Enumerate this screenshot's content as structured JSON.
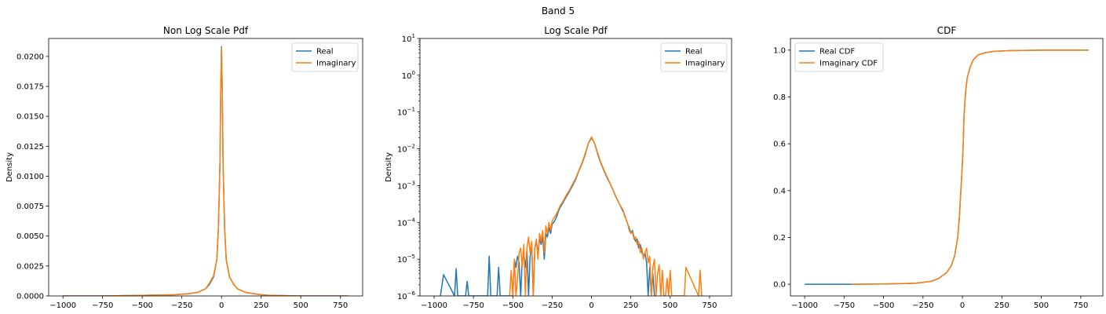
{
  "figure": {
    "suptitle": "Band 5"
  },
  "colors": {
    "real": "#1f77b4",
    "imaginary": "#ff7f0e",
    "axes": "#000000",
    "background": "#ffffff"
  },
  "chart_data": [
    {
      "type": "line",
      "title": "Non Log Scale Pdf",
      "xlabel": "",
      "ylabel": "Density",
      "xlim": [
        -1090,
        890
      ],
      "ylim": [
        0,
        0.0215
      ],
      "yscale": "linear",
      "xticks": [
        -1000,
        -750,
        -500,
        -250,
        0,
        250,
        500,
        750
      ],
      "xtick_labels": [
        "−1000",
        "−750",
        "−500",
        "−250",
        "0",
        "250",
        "500",
        "750"
      ],
      "yticks": [
        0,
        0.0025,
        0.005,
        0.0075,
        0.01,
        0.0125,
        0.015,
        0.0175,
        0.02
      ],
      "ytick_labels": [
        "0.0000",
        "0.0025",
        "0.0050",
        "0.0075",
        "0.0100",
        "0.0125",
        "0.0150",
        "0.0175",
        "0.0200"
      ],
      "legend": {
        "position": "top-right",
        "entries": [
          "Real",
          "Imaginary"
        ]
      },
      "grid": false,
      "series": [
        {
          "name": "Real",
          "color": "#1f77b4",
          "x": [
            -1000,
            -750,
            -500,
            -300,
            -250,
            -200,
            -150,
            -100,
            -75,
            -50,
            -30,
            -20,
            -10,
            -5,
            0,
            5,
            10,
            20,
            30,
            50,
            75,
            100,
            150,
            200,
            250,
            300,
            500,
            800
          ],
          "y": [
            0,
            0,
            5e-05,
            0.0001,
            0.00015,
            0.0002,
            0.0003,
            0.0006,
            0.001,
            0.0016,
            0.003,
            0.0055,
            0.011,
            0.017,
            0.0208,
            0.017,
            0.011,
            0.0055,
            0.003,
            0.0016,
            0.001,
            0.0006,
            0.0003,
            0.0002,
            0.0001,
            5e-05,
            0,
            0
          ]
        },
        {
          "name": "Imaginary",
          "color": "#ff7f0e",
          "x": [
            -1000,
            -750,
            -500,
            -300,
            -250,
            -200,
            -150,
            -100,
            -75,
            -50,
            -30,
            -20,
            -10,
            -5,
            0,
            5,
            10,
            20,
            30,
            50,
            75,
            100,
            150,
            200,
            250,
            300,
            500,
            800
          ],
          "y": [
            0,
            0,
            5e-05,
            0.0001,
            0.00015,
            0.0002,
            0.0003,
            0.0006,
            0.0011,
            0.0017,
            0.003,
            0.0055,
            0.011,
            0.017,
            0.0207,
            0.017,
            0.011,
            0.0055,
            0.003,
            0.0016,
            0.001,
            0.0006,
            0.0003,
            0.0002,
            0.0001,
            5e-05,
            0,
            0
          ]
        }
      ]
    },
    {
      "type": "line",
      "title": "Log Scale Pdf",
      "xlabel": "",
      "ylabel": "Density",
      "xlim": [
        -1090,
        890
      ],
      "ylim": [
        1e-06,
        10
      ],
      "yscale": "log",
      "xticks": [
        -1000,
        -750,
        -500,
        -250,
        0,
        250,
        500,
        750
      ],
      "xtick_labels": [
        "−1000",
        "−750",
        "−500",
        "−250",
        "0",
        "250",
        "500",
        "750"
      ],
      "yticks": [
        1e-06,
        1e-05,
        0.0001,
        0.001,
        0.01,
        0.1,
        1,
        10
      ],
      "ytick_labels": [
        [
          "10",
          "−6"
        ],
        [
          "10",
          "−5"
        ],
        [
          "10",
          "−4"
        ],
        [
          "10",
          "−3"
        ],
        [
          "10",
          "−2"
        ],
        [
          "10",
          "−1"
        ],
        [
          "10",
          "0"
        ],
        [
          "10",
          "1"
        ]
      ],
      "legend": {
        "position": "top-right",
        "entries": [
          "Real",
          "Imaginary"
        ]
      },
      "grid": false,
      "series": [
        {
          "name": "Real",
          "color": "#1f77b4",
          "x": [
            -960,
            -940,
            -870,
            -860,
            -850,
            -800,
            -790,
            -780,
            -660,
            -650,
            -640,
            -600,
            -590,
            -580,
            -500,
            -490,
            -480,
            -470,
            -460,
            -450,
            -440,
            -430,
            -420,
            -410,
            -400,
            -390,
            -380,
            -370,
            -360,
            -350,
            -340,
            -330,
            -320,
            -310,
            -300,
            -290,
            -280,
            -270,
            -260,
            -250,
            -240,
            -230,
            -220,
            -210,
            -200,
            -180,
            -160,
            -140,
            -120,
            -100,
            -80,
            -60,
            -40,
            -20,
            0,
            20,
            40,
            60,
            80,
            100,
            120,
            140,
            160,
            180,
            200,
            210,
            220,
            230,
            240,
            250,
            260,
            270,
            280,
            290,
            300,
            310,
            320,
            330,
            340,
            350,
            360,
            370,
            380,
            390,
            400
          ],
          "y": [
            1e-06,
            3.8e-06,
            1e-06,
            5.5e-06,
            1e-06,
            1e-06,
            2.5e-06,
            1e-06,
            1e-06,
            1.2e-05,
            1e-06,
            1e-06,
            6e-06,
            1e-06,
            1e-06,
            1e-05,
            6e-06,
            1.2e-05,
            8e-06,
            1e-06,
            1e-05,
            1.4e-05,
            6e-06,
            1.8e-05,
            1e-06,
            1.2e-05,
            2.5e-05,
            1e-06,
            2e-05,
            3e-05,
            1.5e-05,
            3.5e-05,
            2.5e-05,
            4e-05,
            1e-05,
            5e-05,
            4e-05,
            7e-05,
            5e-05,
            9e-05,
            0.0001,
            0.00012,
            0.00015,
            0.0002,
            0.00025,
            0.00035,
            0.0005,
            0.0007,
            0.001,
            0.0015,
            0.0025,
            0.004,
            0.007,
            0.014,
            0.02,
            0.014,
            0.007,
            0.004,
            0.0025,
            0.0016,
            0.0011,
            0.0007,
            0.00045,
            0.0003,
            0.0002,
            0.00016,
            0.00012,
            9e-05,
            7e-05,
            5e-05,
            6e-05,
            4e-05,
            3e-05,
            3.5e-05,
            2e-05,
            2.5e-05,
            1.5e-05,
            1.2e-05,
            1.5e-05,
            8e-06,
            1e-06,
            6e-06,
            1e-06,
            4e-06,
            1e-06
          ]
        },
        {
          "name": "Imaginary",
          "color": "#ff7f0e",
          "x": [
            -520,
            -510,
            -500,
            -490,
            -480,
            -470,
            -460,
            -450,
            -440,
            -430,
            -420,
            -410,
            -400,
            -390,
            -380,
            -370,
            -360,
            -350,
            -340,
            -330,
            -320,
            -310,
            -300,
            -290,
            -280,
            -270,
            -260,
            -250,
            -240,
            -230,
            -220,
            -210,
            -200,
            -180,
            -160,
            -140,
            -120,
            -100,
            -80,
            -60,
            -40,
            -20,
            0,
            20,
            40,
            60,
            80,
            100,
            120,
            140,
            160,
            180,
            200,
            210,
            220,
            230,
            240,
            250,
            260,
            270,
            280,
            290,
            300,
            310,
            320,
            330,
            340,
            350,
            360,
            370,
            380,
            390,
            400,
            410,
            420,
            430,
            440,
            450,
            460,
            470,
            480,
            490,
            500,
            510,
            520,
            530,
            540,
            550,
            560,
            570,
            580,
            590,
            600,
            680,
            690,
            700
          ],
          "y": [
            1e-06,
            5e-06,
            1e-06,
            1e-05,
            1e-06,
            3e-06,
            1.5e-05,
            2e-05,
            6e-06,
            2.5e-05,
            1e-06,
            2e-05,
            4e-05,
            1.5e-05,
            3e-05,
            1e-06,
            2e-05,
            3.5e-05,
            1e-05,
            5e-05,
            3e-05,
            6e-05,
            1.5e-05,
            8e-05,
            5e-05,
            0.0001,
            6e-05,
            0.00011,
            0.00013,
            0.00015,
            0.00018,
            0.00022,
            0.00028,
            0.00038,
            0.00055,
            0.00075,
            0.0011,
            0.0016,
            0.0026,
            0.0042,
            0.0075,
            0.014,
            0.021,
            0.014,
            0.0075,
            0.0042,
            0.0026,
            0.0017,
            0.0011,
            0.0007,
            0.00045,
            0.0003,
            0.00022,
            0.00015,
            0.00012,
            9e-05,
            6e-05,
            5e-05,
            5.5e-05,
            3.5e-05,
            4e-05,
            2.5e-05,
            3e-05,
            1.5e-05,
            2e-05,
            1e-05,
            1.5e-05,
            2e-05,
            8e-06,
            1.2e-05,
            1e-06,
            6e-06,
            1e-05,
            1e-06,
            4e-06,
            7e-06,
            1e-06,
            5e-06,
            1e-06,
            1e-06,
            3e-06,
            1e-06,
            5e-06,
            1e-06,
            1e-06,
            1e-06,
            1e-06,
            1e-06,
            1e-06,
            1e-06,
            1e-06,
            1e-06,
            6e-06,
            1e-06,
            5e-06,
            1e-06
          ]
        }
      ]
    },
    {
      "type": "line",
      "title": "CDF",
      "xlabel": "",
      "ylabel": "",
      "xlim": [
        -1090,
        890
      ],
      "ylim": [
        -0.05,
        1.05
      ],
      "yscale": "linear",
      "xticks": [
        -1000,
        -750,
        -500,
        -250,
        0,
        250,
        500,
        750
      ],
      "xtick_labels": [
        "−1000",
        "−750",
        "−500",
        "−250",
        "0",
        "250",
        "500",
        "750"
      ],
      "yticks": [
        0,
        0.2,
        0.4,
        0.6,
        0.8,
        1.0
      ],
      "ytick_labels": [
        "0.0",
        "0.2",
        "0.4",
        "0.6",
        "0.8",
        "1.0"
      ],
      "legend": {
        "position": "top-left",
        "entries": [
          "Real CDF",
          "Imaginary CDF"
        ]
      },
      "grid": false,
      "series": [
        {
          "name": "Real CDF",
          "color": "#1f77b4",
          "x": [
            -1000,
            -700,
            -500,
            -300,
            -200,
            -150,
            -100,
            -70,
            -50,
            -30,
            -20,
            -10,
            -5,
            0,
            5,
            10,
            20,
            30,
            50,
            70,
            100,
            150,
            200,
            300,
            500,
            800
          ],
          "y": [
            0,
            0,
            0.001,
            0.004,
            0.012,
            0.025,
            0.05,
            0.08,
            0.12,
            0.2,
            0.28,
            0.4,
            0.46,
            0.52,
            0.6,
            0.72,
            0.82,
            0.88,
            0.93,
            0.96,
            0.98,
            0.99,
            0.995,
            0.998,
            1.0,
            1.0
          ]
        },
        {
          "name": "Imaginary CDF",
          "color": "#ff7f0e",
          "x": [
            -700,
            -500,
            -300,
            -200,
            -150,
            -100,
            -70,
            -50,
            -30,
            -20,
            -10,
            -5,
            0,
            5,
            10,
            20,
            30,
            50,
            70,
            100,
            150,
            200,
            300,
            500,
            800
          ],
          "y": [
            0,
            0.001,
            0.004,
            0.012,
            0.025,
            0.05,
            0.08,
            0.12,
            0.2,
            0.28,
            0.4,
            0.46,
            0.52,
            0.6,
            0.72,
            0.82,
            0.88,
            0.93,
            0.96,
            0.98,
            0.99,
            0.995,
            0.998,
            1.0,
            1.0
          ]
        }
      ]
    }
  ]
}
